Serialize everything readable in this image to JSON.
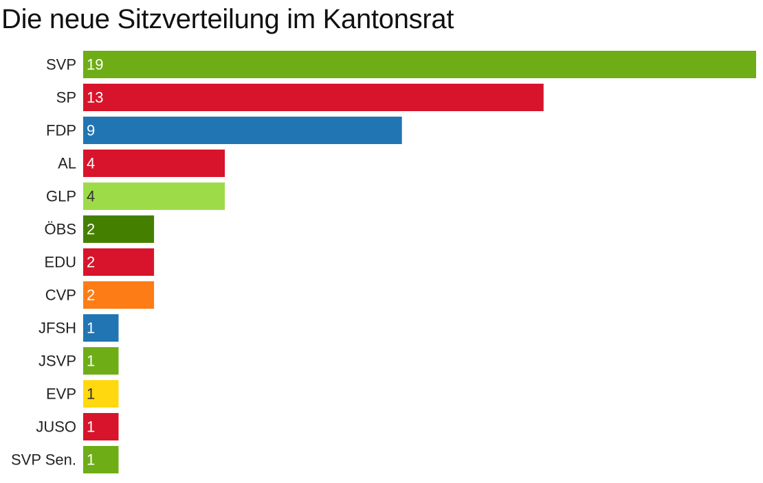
{
  "chart_data": {
    "type": "bar",
    "orientation": "horizontal",
    "title": "Die neue Sitzverteilung im Kantonsrat",
    "categories": [
      "SVP",
      "SP",
      "FDP",
      "AL",
      "GLP",
      "ÖBS",
      "EDU",
      "CVP",
      "JFSH",
      "JSVP",
      "EVP",
      "JUSO",
      "SVP Sen."
    ],
    "values": [
      19,
      13,
      9,
      4,
      4,
      2,
      2,
      2,
      1,
      1,
      1,
      1,
      1
    ],
    "colors": [
      "#6ead16",
      "#d7142b",
      "#2175b3",
      "#d7142b",
      "#9ddc48",
      "#457f00",
      "#d7142b",
      "#fe7c16",
      "#2175b3",
      "#6ead16",
      "#ffd80f",
      "#d7142b",
      "#6ead16"
    ],
    "label_colors": [
      "#ffffff",
      "#ffffff",
      "#ffffff",
      "#ffffff",
      "#333333",
      "#ffffff",
      "#ffffff",
      "#ffffff",
      "#ffffff",
      "#ffffff",
      "#333333",
      "#ffffff",
      "#ffffff"
    ],
    "xlim": [
      0,
      19
    ],
    "xlabel": "",
    "ylabel": "",
    "grid": false,
    "legend": "none",
    "data_labels": "inside-left"
  }
}
